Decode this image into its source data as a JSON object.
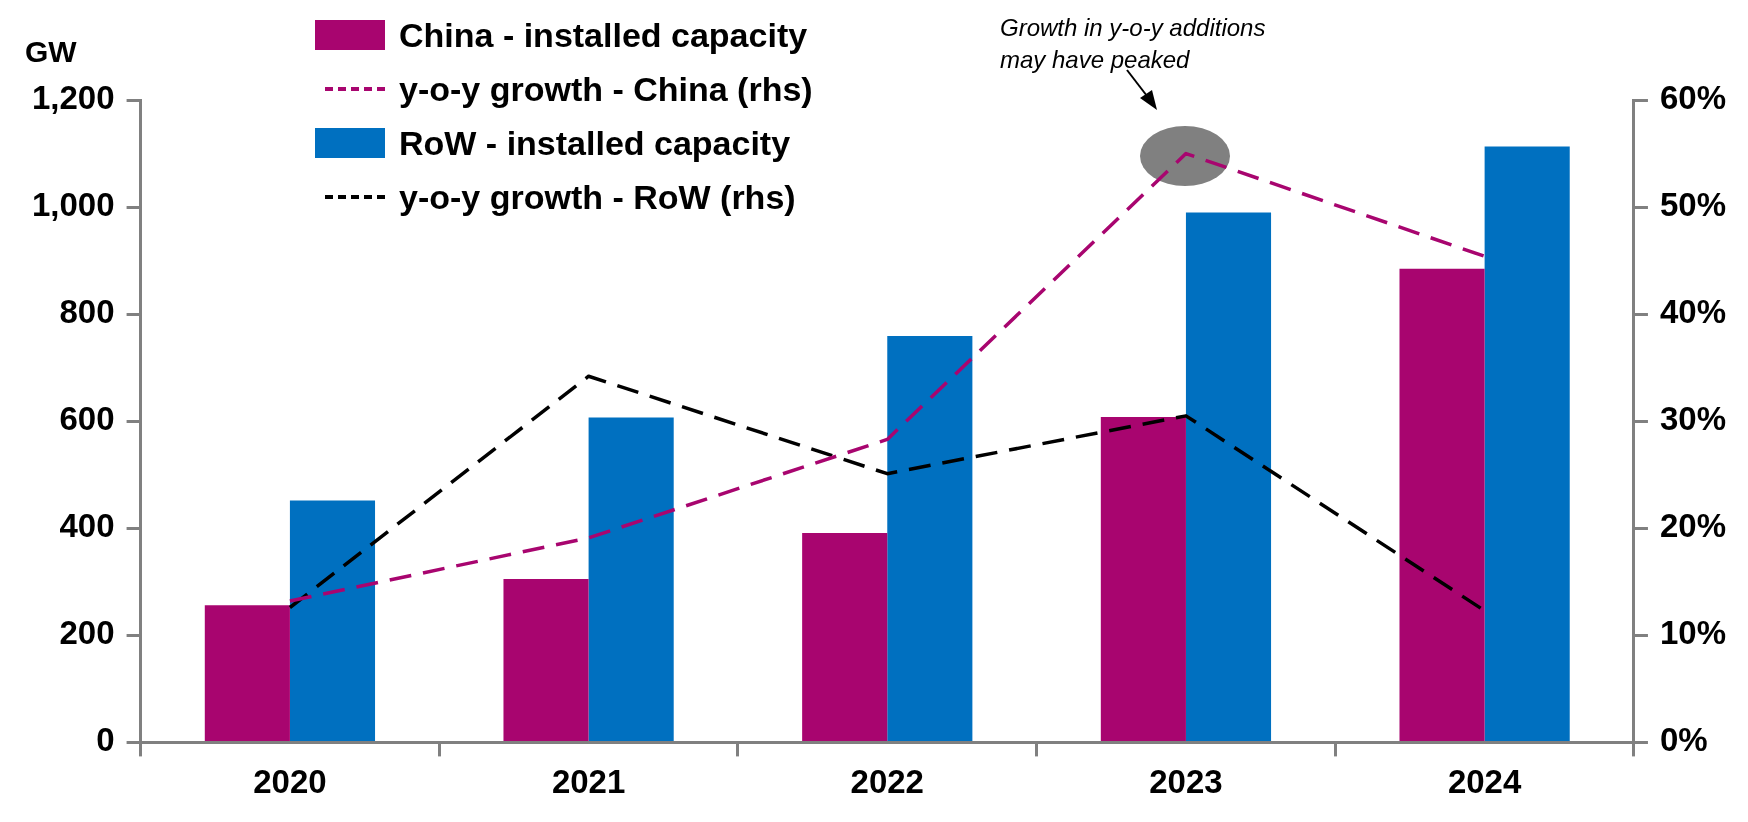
{
  "chart_data": {
    "type": "bar",
    "ylabel": "GW",
    "categories": [
      "2020",
      "2021",
      "2022",
      "2023",
      "2024"
    ],
    "series": [
      {
        "name": "China - installed capacity",
        "color": "#a8056f",
        "values": [
          256,
          305,
          391,
          608,
          885
        ]
      },
      {
        "name": "y-o-y growth - China (rhs)",
        "type": "line",
        "axis": "y2",
        "color": "#a8056f",
        "values": [
          13.2,
          19.1,
          28.3,
          55,
          45.4
        ]
      },
      {
        "name": "RoW - installed capacity",
        "color": "#0070c0",
        "values": [
          452,
          607,
          759,
          990,
          1113
        ]
      },
      {
        "name": "y-o-y growth - RoW (rhs)",
        "type": "line",
        "axis": "y2",
        "color": "#000000",
        "values": [
          12.6,
          34.2,
          25.1,
          30.5,
          12.3
        ]
      }
    ],
    "ylim": [
      0,
      1200
    ],
    "yticks": [
      0,
      200,
      400,
      600,
      800,
      {
        "value": 1000,
        "label": "1,000"
      },
      {
        "value": 1200,
        "label": "1,200"
      }
    ],
    "y2lim": [
      0,
      60
    ],
    "y2ticks": [
      {
        "value": 0,
        "label": "0%"
      },
      {
        "value": 10,
        "label": "10%"
      },
      {
        "value": 20,
        "label": "20%"
      },
      {
        "value": 30,
        "label": "30%"
      },
      {
        "value": 40,
        "label": "40%"
      },
      {
        "value": 50,
        "label": "50%"
      },
      {
        "value": 60,
        "label": "60%"
      }
    ],
    "grid": false,
    "legend": "top",
    "marker": "none",
    "line_style": "dashed",
    "annotations": [
      "Growth in y-o-y additions may have peaked"
    ]
  }
}
